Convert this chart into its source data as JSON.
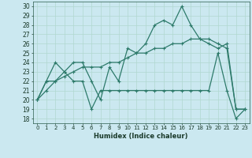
{
  "xlabel": "Humidex (Indice chaleur)",
  "bg_color": "#cbe8f0",
  "line_color": "#2d7a6a",
  "grid_color": "#b0d8d0",
  "xlim": [
    -0.5,
    23.5
  ],
  "ylim": [
    17.5,
    30.5
  ],
  "yticks": [
    18,
    19,
    20,
    21,
    22,
    23,
    24,
    25,
    26,
    27,
    28,
    29,
    30
  ],
  "xticks": [
    0,
    1,
    2,
    3,
    4,
    5,
    6,
    7,
    8,
    9,
    10,
    11,
    12,
    13,
    14,
    15,
    16,
    17,
    18,
    19,
    20,
    21,
    22,
    23
  ],
  "line1_x": [
    0,
    1,
    2,
    3,
    4,
    5,
    6,
    7,
    8,
    9,
    10,
    11,
    12,
    13,
    14,
    15,
    16,
    17,
    18,
    19,
    20,
    21,
    22,
    23
  ],
  "line1_y": [
    20,
    22,
    22,
    23,
    22,
    22,
    19,
    21,
    21,
    21,
    21,
    21,
    21,
    21,
    21,
    21,
    21,
    21,
    21,
    21,
    25,
    21,
    18,
    19
  ],
  "line2_x": [
    0,
    1,
    2,
    3,
    4,
    5,
    6,
    7,
    8,
    9,
    10,
    11,
    12,
    13,
    14,
    15,
    16,
    17,
    18,
    19,
    20,
    21,
    22,
    23
  ],
  "line2_y": [
    20,
    22,
    24,
    23,
    24,
    24,
    22,
    20,
    23.5,
    22,
    25.5,
    25,
    26,
    28,
    28.5,
    28,
    30,
    28,
    26.5,
    26.5,
    26,
    25.5,
    19,
    19
  ],
  "line3_x": [
    0,
    1,
    2,
    3,
    4,
    5,
    6,
    7,
    8,
    9,
    10,
    11,
    12,
    13,
    14,
    15,
    16,
    17,
    18,
    19,
    20,
    21,
    22,
    23
  ],
  "line3_y": [
    20,
    21,
    22,
    22.5,
    23,
    23.5,
    23.5,
    23.5,
    24,
    24,
    24.5,
    25,
    25,
    25.5,
    25.5,
    26,
    26,
    26.5,
    26.5,
    26,
    25.5,
    26,
    19,
    19
  ]
}
